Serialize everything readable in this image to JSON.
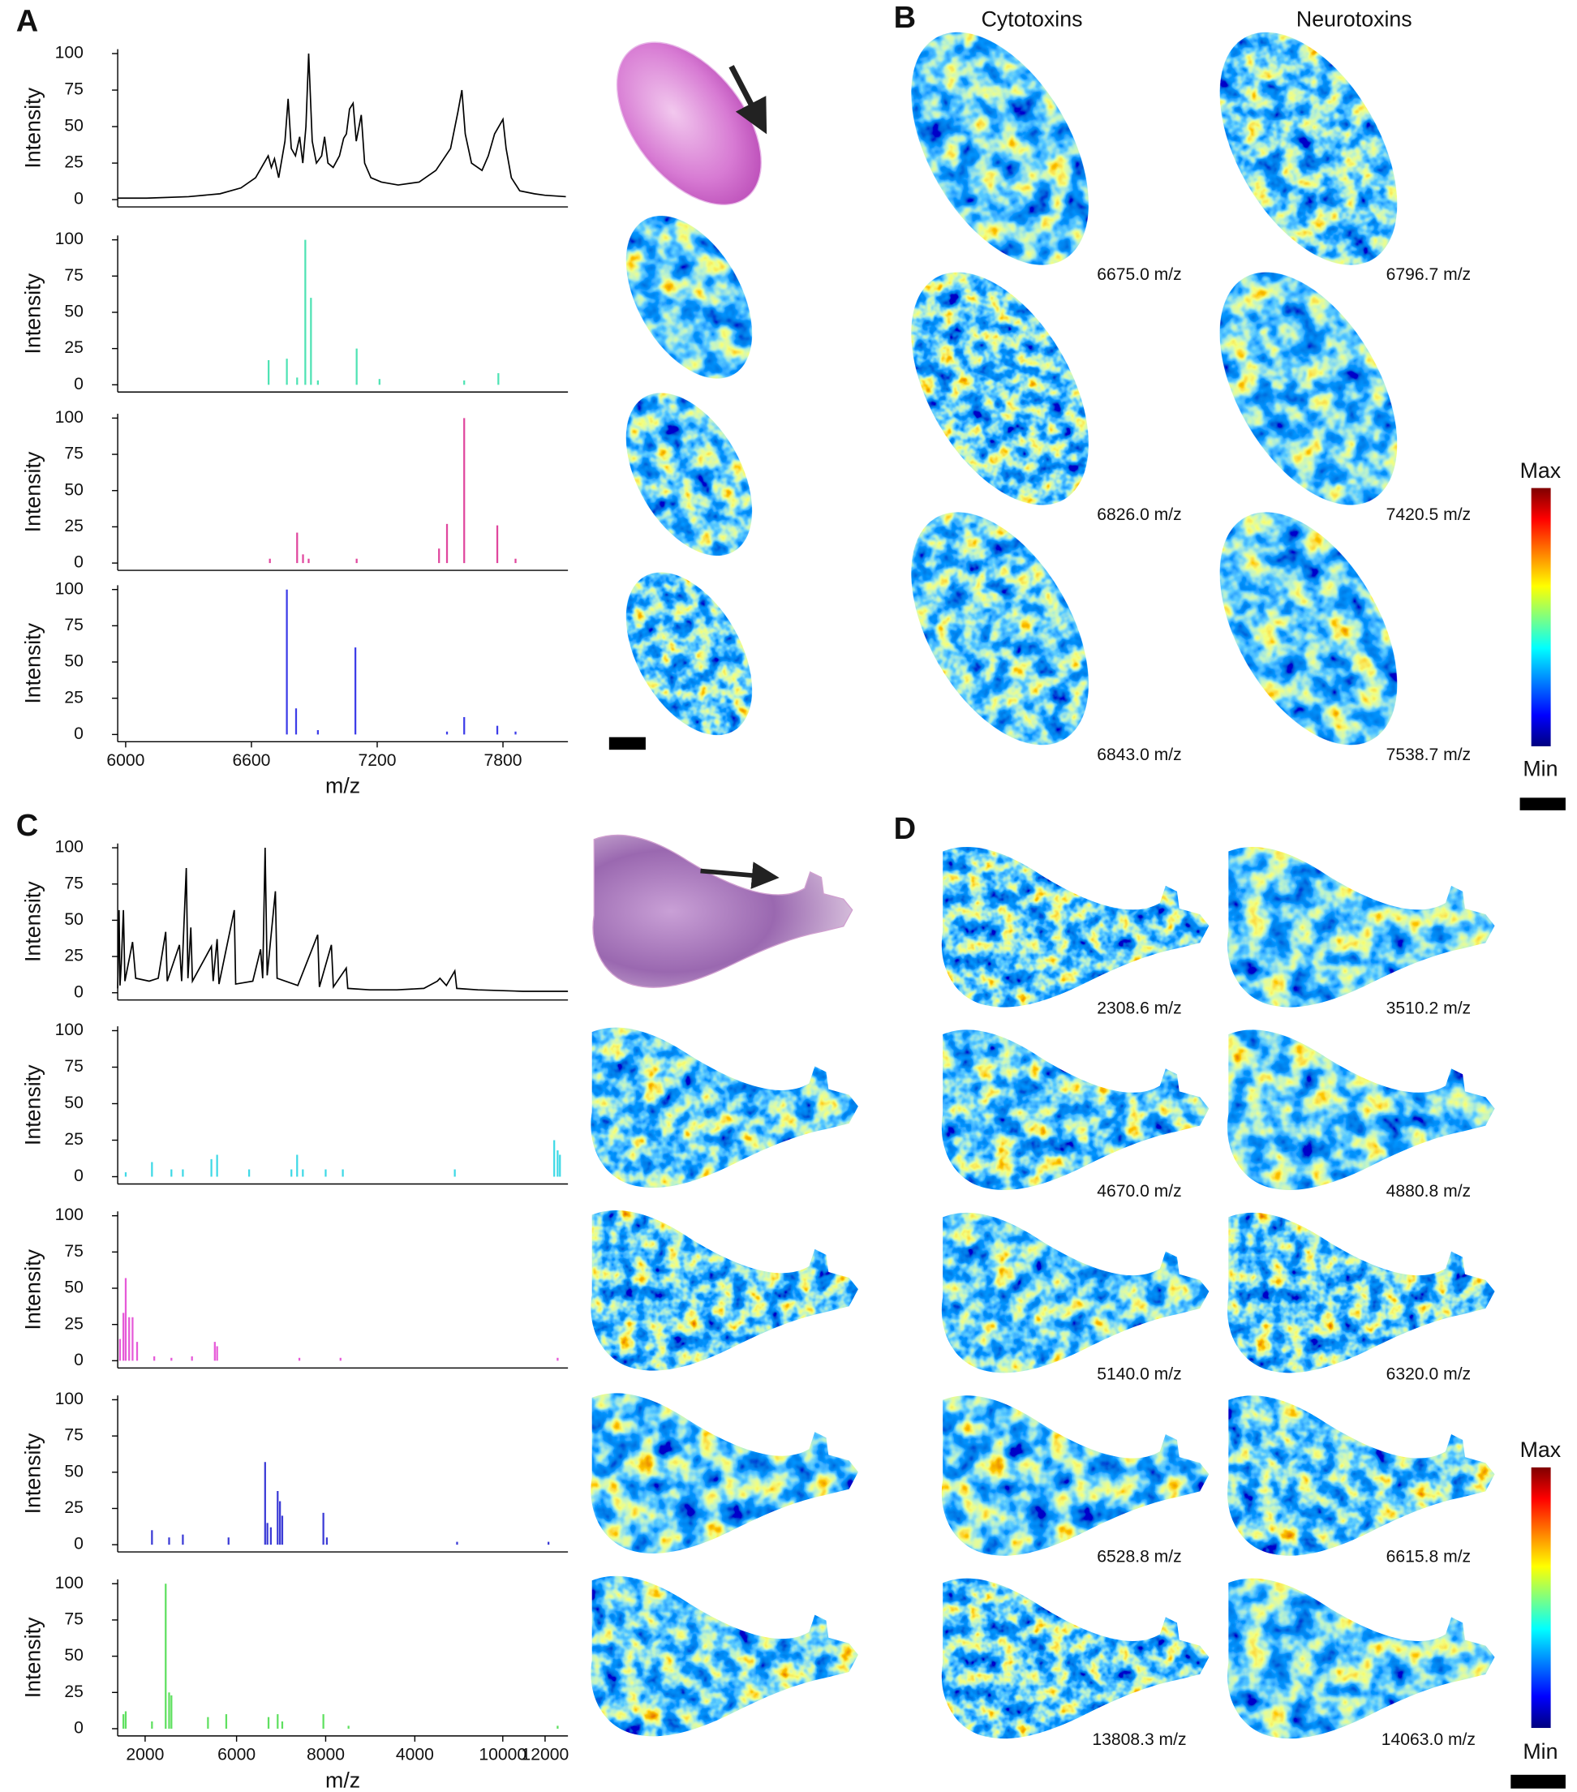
{
  "chart_data": [
    {
      "type": "line",
      "ylabel": "Intensity",
      "color": "#000000",
      "xlim": [
        5962,
        8110
      ],
      "ylim": [
        -5,
        103
      ],
      "yticks": [
        0,
        25,
        50,
        75,
        100
      ],
      "x": [
        5962,
        6100,
        6300,
        6450,
        6550,
        6620,
        6660,
        6680,
        6695,
        6710,
        6730,
        6760,
        6775,
        6790,
        6810,
        6830,
        6845,
        6860,
        6873,
        6890,
        6910,
        6935,
        6949,
        6965,
        6990,
        7020,
        7040,
        7053,
        7068,
        7085,
        7100,
        7124,
        7140,
        7170,
        7220,
        7300,
        7400,
        7480,
        7550,
        7585,
        7604,
        7620,
        7650,
        7700,
        7730,
        7760,
        7780,
        7800,
        7815,
        7840,
        7880,
        7950,
        8000,
        8100
      ],
      "values": [
        1,
        1,
        2,
        4,
        8,
        15,
        25,
        30,
        22,
        28,
        15,
        40,
        69,
        35,
        30,
        43,
        25,
        50,
        100,
        40,
        25,
        30,
        43,
        25,
        22,
        30,
        42,
        45,
        62,
        66,
        40,
        58,
        25,
        15,
        12,
        10,
        12,
        20,
        35,
        60,
        75,
        45,
        25,
        20,
        30,
        45,
        50,
        55,
        35,
        15,
        6,
        4,
        3,
        2
      ]
    },
    {
      "type": "bar",
      "ylabel": "Intensity",
      "color": "#4fe3b4",
      "xlim": [
        5962,
        8110
      ],
      "ylim": [
        -5,
        103
      ],
      "yticks": [
        0,
        25,
        50,
        75,
        100
      ],
      "x": [
        6682,
        6769,
        6818,
        6857,
        6884,
        6917,
        7102,
        7211,
        7615,
        7778
      ],
      "values": [
        17,
        18,
        5,
        100,
        60,
        3,
        25,
        4,
        3,
        8
      ]
    },
    {
      "type": "bar",
      "ylabel": "Intensity",
      "color": "#e0479e",
      "xlim": [
        5962,
        8110
      ],
      "ylim": [
        -5,
        103
      ],
      "yticks": [
        0,
        25,
        50,
        75,
        100
      ],
      "x": [
        6688,
        6818,
        6846,
        6873,
        7102,
        7495,
        7533,
        7615,
        7773,
        7860
      ],
      "values": [
        3,
        21,
        6,
        3,
        3,
        10,
        27,
        100,
        26,
        3
      ]
    },
    {
      "type": "bar",
      "ylabel": "Intensity",
      "xlabel": "m/z",
      "color": "#3d3de8",
      "xlim": [
        5962,
        8110
      ],
      "ylim": [
        -5,
        103
      ],
      "yticks": [
        0,
        25,
        50,
        75,
        100
      ],
      "xticks": [
        6000,
        6600,
        7200,
        7800
      ],
      "x": [
        6769,
        6813,
        6917,
        7096,
        7533,
        7615,
        7773,
        7860
      ],
      "values": [
        100,
        18,
        3,
        60,
        2,
        12,
        6,
        2
      ]
    },
    {
      "type": "line",
      "ylabel": "Intensity",
      "color": "#000000",
      "xlim": [
        2000,
        12000
      ],
      "ylim": [
        -5,
        103
      ],
      "yticks": [
        0,
        25,
        50,
        75,
        100
      ],
      "x": [
        2000,
        2030,
        2051,
        2080,
        2127,
        2160,
        2330,
        2400,
        2700,
        2900,
        3066,
        3100,
        3371,
        3420,
        3523,
        3560,
        3624,
        3660,
        4081,
        4120,
        4208,
        4250,
        4589,
        4620,
        5000,
        5173,
        5220,
        5274,
        5320,
        5502,
        5540,
        6000,
        6442,
        6480,
        6746,
        6790,
        7076,
        7110,
        7600,
        8200,
        8800,
        9100,
        9157,
        9300,
        9487,
        9530,
        10000,
        11000,
        12000
      ],
      "values": [
        3,
        57,
        5,
        20,
        57,
        8,
        35,
        10,
        8,
        10,
        42,
        8,
        33,
        8,
        86,
        10,
        45,
        8,
        32,
        8,
        37,
        6,
        57,
        6,
        8,
        30,
        10,
        100,
        12,
        70,
        10,
        5,
        40,
        4,
        33,
        4,
        17,
        3,
        2,
        2,
        3,
        8,
        10,
        5,
        15,
        3,
        2,
        1,
        1
      ]
    },
    {
      "type": "bar",
      "ylabel": "Intensity",
      "color": "#3fd9e6",
      "xlim": [
        2000,
        12000
      ],
      "ylim": [
        -5,
        103
      ],
      "yticks": [
        0,
        25,
        50,
        75,
        100
      ],
      "x": [
        2178,
        2761,
        3193,
        3447,
        4081,
        4208,
        4919,
        5858,
        5985,
        6112,
        6619,
        7000,
        9487,
        11695,
        11771,
        11822
      ],
      "values": [
        3,
        10,
        5,
        5,
        12,
        15,
        5,
        5,
        15,
        5,
        5,
        5,
        5,
        25,
        18,
        15
      ]
    },
    {
      "type": "bar",
      "ylabel": "Intensity",
      "color": "#e65ad8",
      "xlim": [
        2000,
        12000
      ],
      "ylim": [
        -5,
        103
      ],
      "yticks": [
        0,
        25,
        50,
        75,
        100
      ],
      "x": [
        2051,
        2127,
        2178,
        2254,
        2330,
        2431,
        2812,
        3193,
        3650,
        4157,
        4208,
        6035,
        6949,
        11771
      ],
      "values": [
        15,
        33,
        57,
        30,
        30,
        13,
        3,
        2,
        3,
        13,
        10,
        2,
        2,
        2
      ]
    },
    {
      "type": "bar",
      "ylabel": "Intensity",
      "color": "#3b3bd6",
      "xlim": [
        2000,
        12000
      ],
      "ylim": [
        -5,
        103
      ],
      "yticks": [
        0,
        25,
        50,
        75,
        100
      ],
      "x": [
        2761,
        3142,
        3447,
        4462,
        5274,
        5325,
        5401,
        5553,
        5604,
        5655,
        6568,
        6645,
        9538,
        11568
      ],
      "values": [
        10,
        5,
        7,
        5,
        57,
        15,
        12,
        37,
        30,
        20,
        22,
        5,
        2,
        2
      ]
    },
    {
      "type": "bar",
      "ylabel": "Intensity",
      "xlabel": "m/z",
      "color": "#5fe060",
      "xlim": [
        2000,
        12000
      ],
      "ylim": [
        -5,
        103
      ],
      "yticks": [
        0,
        25,
        50,
        75,
        100
      ],
      "xticks": [
        {
          "value": 2609,
          "label": "2000"
        },
        {
          "value": 4640,
          "label": "6000"
        },
        {
          "value": 6619,
          "label": "8000"
        },
        {
          "value": 8599,
          "label": "4000"
        },
        {
          "value": 10553,
          "label": "10000"
        },
        {
          "value": 11492,
          "label": "12000"
        }
      ],
      "x": [
        2127,
        2178,
        2761,
        3066,
        3142,
        3193,
        4005,
        4411,
        5350,
        5553,
        5655,
        6568,
        7127,
        11771
      ],
      "values": [
        10,
        12,
        5,
        100,
        25,
        23,
        8,
        10,
        8,
        10,
        5,
        10,
        2,
        2
      ]
    }
  ],
  "panel_labels": [
    "A",
    "B",
    "C",
    "D"
  ],
  "columns": [
    "Cytotoxins",
    "Neurotoxins"
  ],
  "b_map_labels": [
    "6675.0 m/z",
    "6796.7 m/z",
    "6826.0 m/z",
    "7420.5 m/z",
    "6843.0 m/z",
    "7538.7 m/z"
  ],
  "d_map_labels": [
    "2308.6 m/z",
    "3510.2 m/z",
    "4670.0 m/z",
    "4880.8 m/z",
    "5140.0 m/z",
    "6320.0 m/z",
    "6528.8 m/z",
    "6615.8 m/z",
    "13808.3 m/z",
    "14063.0 m/z"
  ],
  "colorbar": {
    "max": "Max",
    "min": "Min"
  }
}
